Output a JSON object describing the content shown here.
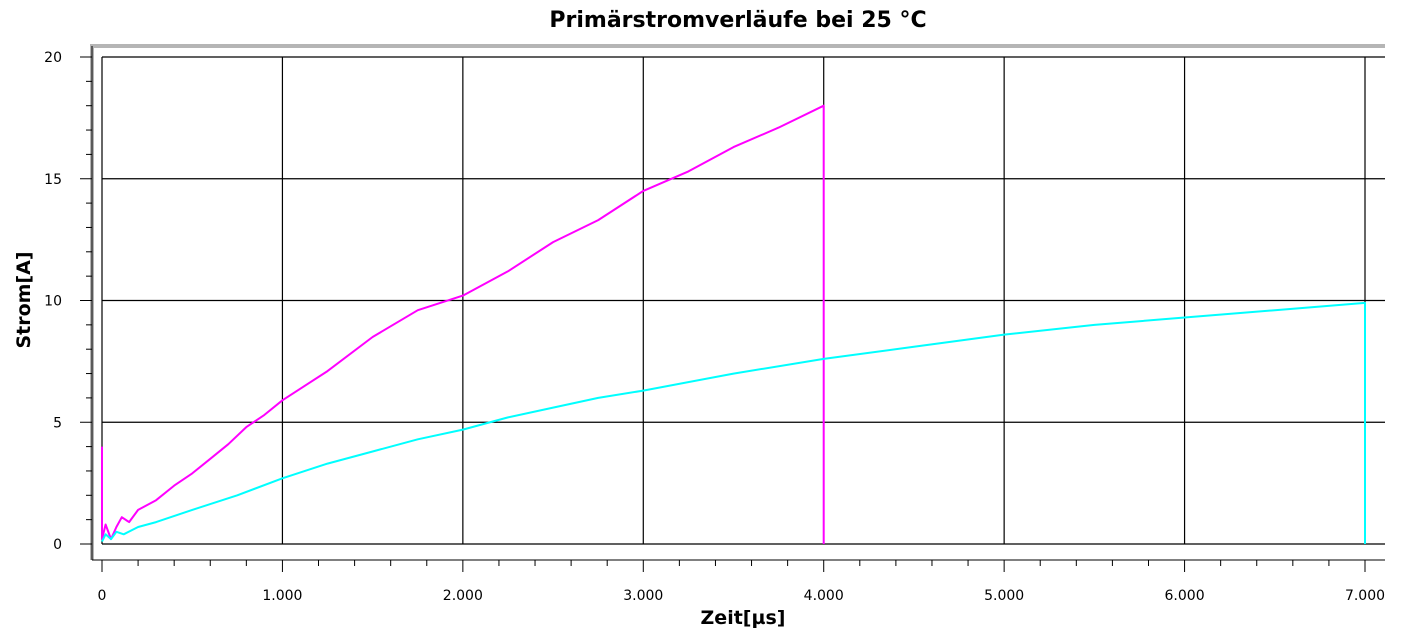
{
  "chart_data": {
    "type": "line",
    "title": "Primärstromverläufe bei 25 °C",
    "xlabel": "Zeit[µs]",
    "ylabel": "Strom[A]",
    "xlim": [
      0,
      7000
    ],
    "ylim": [
      0,
      20
    ],
    "grid": true,
    "legend": "none",
    "x_ticks": [
      0,
      1000,
      2000,
      3000,
      4000,
      5000,
      6000,
      7000
    ],
    "x_tick_labels": [
      "0",
      "1.000",
      "2.000",
      "3.000",
      "4.000",
      "5.000",
      "6.000",
      "7.000"
    ],
    "y_ticks": [
      0,
      5,
      10,
      15,
      20
    ],
    "y_tick_labels": [
      "0",
      "5",
      "10",
      "15",
      "20"
    ],
    "series": [
      {
        "color": "#ff00ff",
        "x": [
          0,
          0,
          20,
          50,
          80,
          110,
          150,
          200,
          300,
          400,
          500,
          600,
          700,
          800,
          900,
          1000,
          1250,
          1500,
          1750,
          2000,
          2250,
          2500,
          2750,
          3000,
          3250,
          3500,
          3750,
          4000,
          4000
        ],
        "y": [
          4,
          0.2,
          0.8,
          0.2,
          0.7,
          1.1,
          0.9,
          1.4,
          1.8,
          2.4,
          2.9,
          3.5,
          4.1,
          4.8,
          5.3,
          5.9,
          7.1,
          8.5,
          9.6,
          10.2,
          11.2,
          12.4,
          13.3,
          14.5,
          15.3,
          16.3,
          17.1,
          18.0,
          0
        ]
      },
      {
        "color": "#00ffff",
        "x": [
          0,
          20,
          50,
          80,
          120,
          200,
          300,
          500,
          750,
          1000,
          1250,
          1500,
          1750,
          2000,
          2250,
          2500,
          2750,
          3000,
          3500,
          4000,
          4500,
          5000,
          5500,
          6000,
          6500,
          7000,
          7000
        ],
        "y": [
          0.1,
          0.4,
          0.2,
          0.5,
          0.4,
          0.7,
          0.9,
          1.4,
          2.0,
          2.7,
          3.3,
          3.8,
          4.3,
          4.7,
          5.2,
          5.6,
          6.0,
          6.3,
          7.0,
          7.6,
          8.1,
          8.6,
          9.0,
          9.3,
          9.6,
          9.9,
          0
        ]
      }
    ]
  }
}
